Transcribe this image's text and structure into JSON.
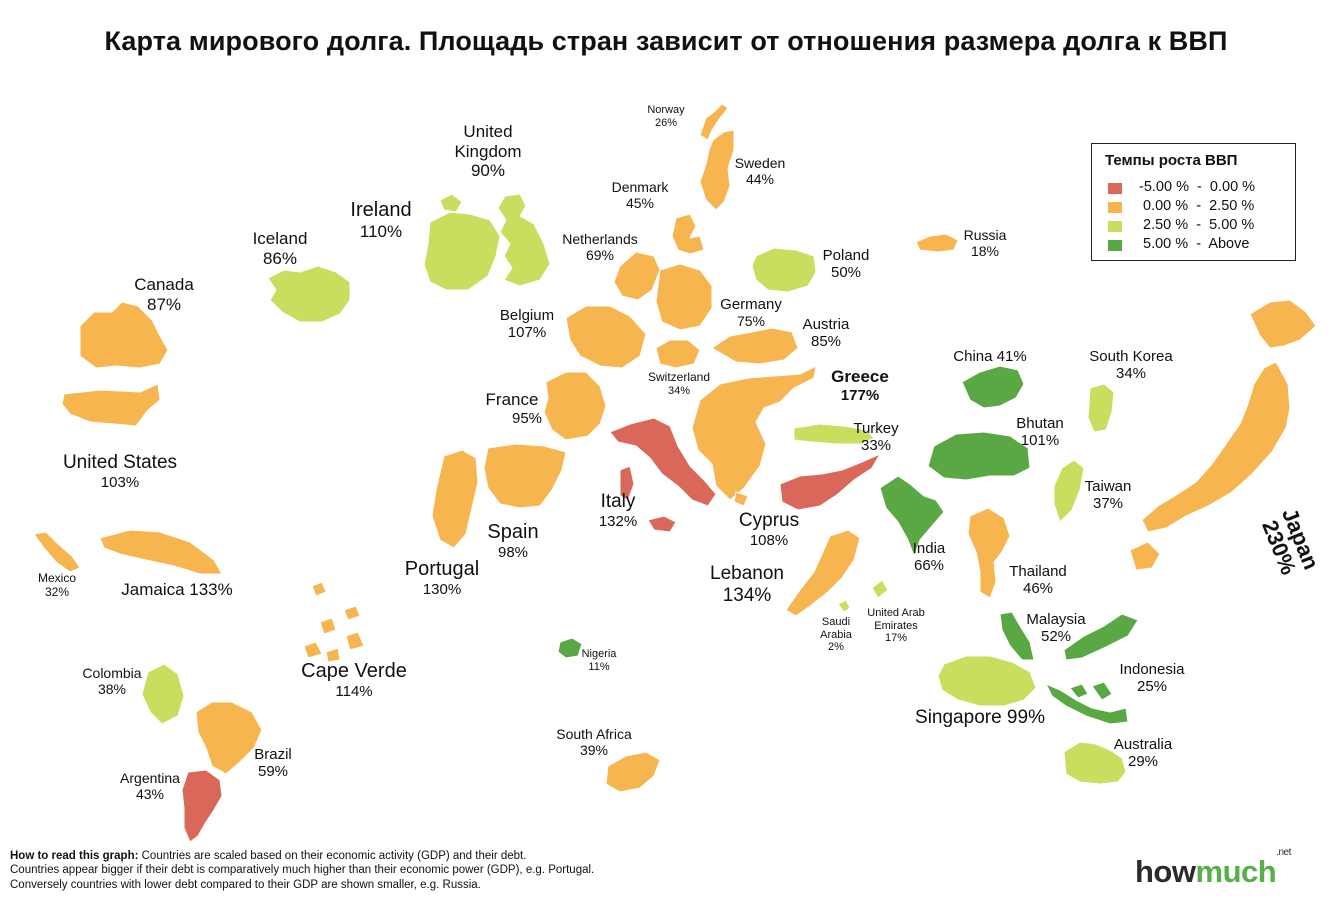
{
  "title": "Карта мирового долга. Площадь стран зависит от отношения размера долга к ВВП",
  "colors": {
    "negative": "#d9685a",
    "low": "#f6b54e",
    "mid": "#c9dd5f",
    "high": "#5aa844"
  },
  "legend": {
    "title": "Темпы роста ВВП",
    "items": [
      {
        "text": "-5.00 %  -  0.00 %",
        "color": "#d9685a"
      },
      {
        "text": " 0.00 %  -  2.50 %",
        "color": "#f6b54e"
      },
      {
        "text": " 2.50 %  -  5.00 %",
        "color": "#c9dd5f"
      },
      {
        "text": " 5.00 %  -  Above",
        "color": "#5aa844"
      }
    ]
  },
  "countries": {
    "norway": {
      "name": "Norway",
      "value": "26%"
    },
    "sweden": {
      "name": "Sweden",
      "value": "44%"
    },
    "denmark": {
      "name": "Denmark",
      "value": "45%"
    },
    "uk": {
      "name1": "United",
      "name2": "Kingdom",
      "value": "90%"
    },
    "ireland": {
      "name": "Ireland",
      "value": "110%"
    },
    "iceland": {
      "name": "Iceland",
      "value": "86%"
    },
    "netherlands": {
      "name": "Netherlands",
      "value": "69%"
    },
    "russia": {
      "name": "Russia",
      "value": "18%"
    },
    "poland": {
      "name": "Poland",
      "value": "50%"
    },
    "canada": {
      "name": "Canada",
      "value": "87%"
    },
    "belgium": {
      "name": "Belgium",
      "value": "107%"
    },
    "germany": {
      "name": "Germany",
      "value": "75%"
    },
    "austria": {
      "name": "Austria",
      "value": "85%"
    },
    "switzerland": {
      "name": "Switzerland",
      "value": "34%"
    },
    "greece": {
      "name": "Greece",
      "value": "177%"
    },
    "china": {
      "label": "China 41%"
    },
    "south_korea": {
      "name": "South Korea",
      "value": "34%"
    },
    "france": {
      "name": "France",
      "value": "95%"
    },
    "turkey": {
      "name": "Turkey",
      "value": "33%"
    },
    "bhutan": {
      "name": "Bhutan",
      "value": "101%"
    },
    "united_states": {
      "name": "United States",
      "value": "103%"
    },
    "italy": {
      "name": "Italy",
      "value": "132%"
    },
    "taiwan": {
      "name": "Taiwan",
      "value": "37%"
    },
    "spain": {
      "name": "Spain",
      "value": "98%"
    },
    "cyprus": {
      "name": "Cyprus",
      "value": "108%"
    },
    "japan": {
      "name": "Japan",
      "value": "230%"
    },
    "india": {
      "name": "India",
      "value": "66%"
    },
    "portugal": {
      "name": "Portugal",
      "value": "130%"
    },
    "lebanon": {
      "name": "Lebanon",
      "value": "134%"
    },
    "thailand": {
      "name": "Thailand",
      "value": "46%"
    },
    "mexico": {
      "name": "Mexico",
      "value": "32%"
    },
    "jamaica": {
      "label": "Jamaica 133%"
    },
    "saudi": {
      "name1": "Saudi",
      "name2": "Arabia",
      "value": "2%"
    },
    "uae": {
      "name1": "United Arab",
      "name2": "Emirates",
      "value": "17%"
    },
    "malaysia": {
      "name": "Malaysia",
      "value": "52%"
    },
    "nigeria": {
      "name": "Nigeria",
      "value": "11%"
    },
    "cape_verde": {
      "name": "Cape Verde",
      "value": "114%"
    },
    "colombia": {
      "name": "Colombia",
      "value": "38%"
    },
    "indonesia": {
      "name": "Indonesia",
      "value": "25%"
    },
    "singapore": {
      "label": "Singapore 99%"
    },
    "south_africa": {
      "name": "South Africa",
      "value": "39%"
    },
    "brazil": {
      "name": "Brazil",
      "value": "59%"
    },
    "australia": {
      "name": "Australia",
      "value": "29%"
    },
    "argentina": {
      "name": "Argentina",
      "value": "43%"
    }
  },
  "note": {
    "heading": "How to read this graph:",
    "line1": " Countries are scaled based on their economic activity (GDP) and their debt.",
    "line2": "Countries appear bigger if their debt is comparatively much higher than their economic power (GDP), e.g. Portugal.",
    "line3": "Conversely countries with lower debt compared to their GDP are shown smaller, e.g. Russia."
  },
  "brand": {
    "part1": "how",
    "part2": "much",
    "suffix": ".net"
  }
}
